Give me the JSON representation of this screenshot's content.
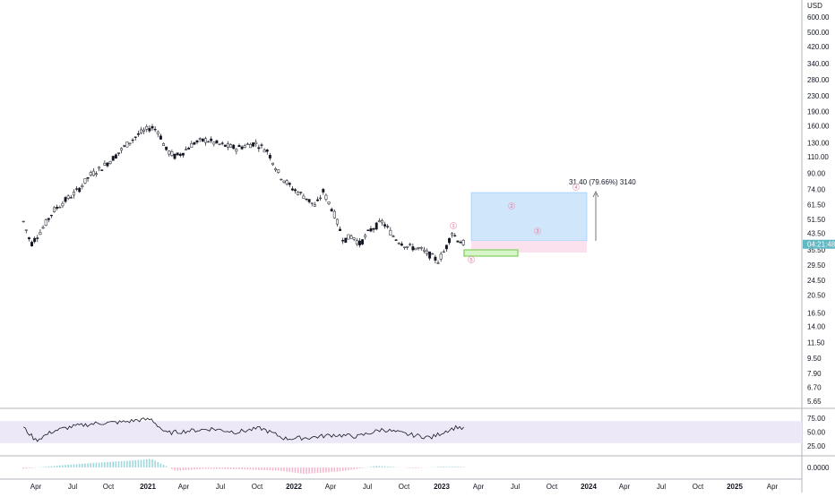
{
  "currency_label": "USD",
  "chart_data": {
    "type": "candlestick",
    "price_scale": "log",
    "y_ticks": [
      "600.00",
      "500.00",
      "420.00",
      "340.00",
      "280.00",
      "230.00",
      "190.00",
      "160.00",
      "130.00",
      "110.00",
      "90.00",
      "74.00",
      "61.50",
      "51.50",
      "43.50",
      "35.50",
      "29.50",
      "24.50",
      "20.50",
      "16.50",
      "14.00",
      "11.50",
      "9.50",
      "7.90",
      "6.70",
      "5.65"
    ],
    "x_ticks": [
      "Apr",
      "Jul",
      "Oct",
      "2021",
      "Apr",
      "Jul",
      "Oct",
      "2022",
      "Apr",
      "Jul",
      "Oct",
      "2023",
      "Apr",
      "Jul",
      "Oct",
      "2024",
      "Apr",
      "Jul",
      "Oct",
      "2025",
      "Apr"
    ],
    "last_price_label": "04:21:48",
    "colors": {
      "up": "#2a7fff",
      "down": "#e05a8a",
      "candle_body": "#131722",
      "rsi_band": "#ede8f7",
      "rsi_line": "#131722",
      "last_price_bg": "#5fb8c2"
    },
    "price_series": [
      {
        "x": "2020-03-01",
        "y": 50
      },
      {
        "x": "2020-03-20",
        "y": 38
      },
      {
        "x": "2020-04-15",
        "y": 45
      },
      {
        "x": "2020-05-15",
        "y": 57
      },
      {
        "x": "2020-06-15",
        "y": 65
      },
      {
        "x": "2020-07-15",
        "y": 73
      },
      {
        "x": "2020-08-15",
        "y": 88
      },
      {
        "x": "2020-09-15",
        "y": 97
      },
      {
        "x": "2020-10-15",
        "y": 110
      },
      {
        "x": "2020-11-15",
        "y": 128
      },
      {
        "x": "2020-12-15",
        "y": 145
      },
      {
        "x": "2021-01-15",
        "y": 158
      },
      {
        "x": "2021-02-01",
        "y": 150
      },
      {
        "x": "2021-02-20",
        "y": 120
      },
      {
        "x": "2021-03-15",
        "y": 110
      },
      {
        "x": "2021-04-01",
        "y": 115
      },
      {
        "x": "2021-05-01",
        "y": 130
      },
      {
        "x": "2021-06-01",
        "y": 135
      },
      {
        "x": "2021-07-01",
        "y": 128
      },
      {
        "x": "2021-08-15",
        "y": 122
      },
      {
        "x": "2021-10-01",
        "y": 130
      },
      {
        "x": "2021-11-01",
        "y": 118
      },
      {
        "x": "2021-12-01",
        "y": 88
      },
      {
        "x": "2022-01-01",
        "y": 75
      },
      {
        "x": "2022-02-01",
        "y": 68
      },
      {
        "x": "2022-03-01",
        "y": 60
      },
      {
        "x": "2022-03-20",
        "y": 72
      },
      {
        "x": "2022-04-15",
        "y": 56
      },
      {
        "x": "2022-05-10",
        "y": 40
      },
      {
        "x": "2022-06-01",
        "y": 42
      },
      {
        "x": "2022-06-20",
        "y": 38
      },
      {
        "x": "2022-07-15",
        "y": 45
      },
      {
        "x": "2022-08-15",
        "y": 50
      },
      {
        "x": "2022-09-15",
        "y": 41
      },
      {
        "x": "2022-10-15",
        "y": 37
      },
      {
        "x": "2022-11-15",
        "y": 36
      },
      {
        "x": "2022-12-15",
        "y": 33
      },
      {
        "x": "2023-01-01",
        "y": 31
      },
      {
        "x": "2023-01-20",
        "y": 36
      },
      {
        "x": "2023-02-05",
        "y": 44
      },
      {
        "x": "2023-02-20",
        "y": 40
      },
      {
        "x": "2023-03-10",
        "y": 38
      }
    ],
    "annotation_text": "31.40 (79.66%) 3140",
    "wave_labels": [
      "1",
      "2",
      "3",
      "4",
      "5"
    ],
    "rsi_ticks": [
      "75.00",
      "50.00",
      "25.00"
    ],
    "rsi_series": [
      {
        "x": "2020-03-01",
        "y": 58
      },
      {
        "x": "2020-04-01",
        "y": 35
      },
      {
        "x": "2020-05-15",
        "y": 52
      },
      {
        "x": "2020-07-01",
        "y": 60
      },
      {
        "x": "2020-09-01",
        "y": 66
      },
      {
        "x": "2020-11-01",
        "y": 68
      },
      {
        "x": "2020-12-15",
        "y": 72
      },
      {
        "x": "2021-01-15",
        "y": 73
      },
      {
        "x": "2021-02-20",
        "y": 48
      },
      {
        "x": "2021-04-15",
        "y": 52
      },
      {
        "x": "2021-06-15",
        "y": 56
      },
      {
        "x": "2021-08-15",
        "y": 50
      },
      {
        "x": "2021-10-15",
        "y": 57
      },
      {
        "x": "2021-12-15",
        "y": 38
      },
      {
        "x": "2022-02-15",
        "y": 40
      },
      {
        "x": "2022-04-15",
        "y": 45
      },
      {
        "x": "2022-06-15",
        "y": 42
      },
      {
        "x": "2022-08-15",
        "y": 55
      },
      {
        "x": "2022-10-15",
        "y": 46
      },
      {
        "x": "2022-12-15",
        "y": 40
      },
      {
        "x": "2023-01-20",
        "y": 52
      },
      {
        "x": "2023-02-20",
        "y": 60
      },
      {
        "x": "2023-03-10",
        "y": 54
      }
    ],
    "macd_ticks": [
      "0.0000"
    ],
    "macd_series": [
      {
        "x": "2020-03-01",
        "y": -0.5
      },
      {
        "x": "2020-06-01",
        "y": 0.8
      },
      {
        "x": "2020-09-01",
        "y": 1.8
      },
      {
        "x": "2020-12-01",
        "y": 2.6
      },
      {
        "x": "2021-01-15",
        "y": 3.2
      },
      {
        "x": "2021-03-15",
        "y": -1.2
      },
      {
        "x": "2021-06-01",
        "y": -0.5
      },
      {
        "x": "2021-09-01",
        "y": -0.7
      },
      {
        "x": "2021-12-01",
        "y": -1.2
      },
      {
        "x": "2022-02-01",
        "y": -2.4
      },
      {
        "x": "2022-05-01",
        "y": -1.5
      },
      {
        "x": "2022-08-01",
        "y": 0.6
      },
      {
        "x": "2022-11-01",
        "y": -0.3
      },
      {
        "x": "2023-01-15",
        "y": 0.3
      },
      {
        "x": "2023-03-10",
        "y": 0.2
      }
    ]
  }
}
